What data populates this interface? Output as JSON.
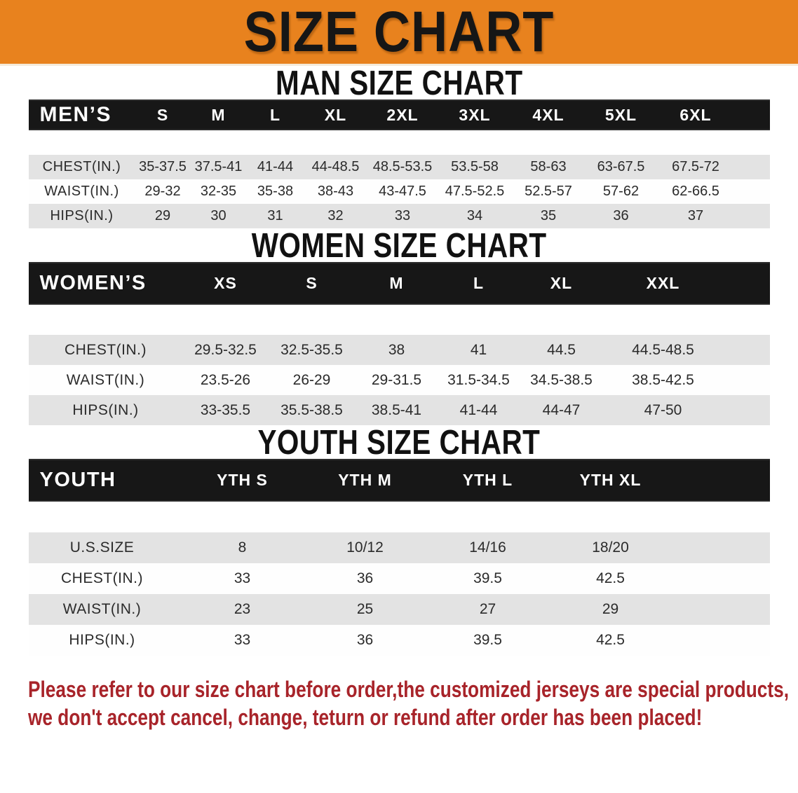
{
  "banner": {
    "title": "SIZE CHART"
  },
  "sections": [
    {
      "heading": "MAN SIZE CHART",
      "table": {
        "header_label": "MEN’S",
        "columns": [
          "S",
          "M",
          "L",
          "XL",
          "2XL",
          "3XL",
          "4XL",
          "5XL",
          "6XL"
        ],
        "rows": [
          {
            "label": "CHEST(IN.)",
            "values": [
              "35-37.5",
              "37.5-41",
              "41-44",
              "44-48.5",
              "48.5-53.5",
              "53.5-58",
              "58-63",
              "63-67.5",
              "67.5-72"
            ]
          },
          {
            "label": "WAIST(IN.)",
            "values": [
              "29-32",
              "32-35",
              "35-38",
              "38-43",
              "43-47.5",
              "47.5-52.5",
              "52.5-57",
              "57-62",
              "62-66.5"
            ]
          },
          {
            "label": "HIPS(IN.)",
            "values": [
              "29",
              "30",
              "31",
              "32",
              "33",
              "34",
              "35",
              "36",
              "37"
            ]
          }
        ]
      }
    },
    {
      "heading": "WOMEN SIZE CHART",
      "table": {
        "header_label": "WOMEN’S",
        "columns": [
          "XS",
          "S",
          "M",
          "L",
          "XL",
          "XXL"
        ],
        "rows": [
          {
            "label": "CHEST(IN.)",
            "values": [
              "29.5-32.5",
              "32.5-35.5",
              "38",
              "41",
              "44.5",
              "44.5-48.5"
            ]
          },
          {
            "label": "WAIST(IN.)",
            "values": [
              "23.5-26",
              "26-29",
              "29-31.5",
              "31.5-34.5",
              "34.5-38.5",
              "38.5-42.5"
            ]
          },
          {
            "label": "HIPS(IN.)",
            "values": [
              "33-35.5",
              "35.5-38.5",
              "38.5-41",
              "41-44",
              "44-47",
              "47-50"
            ]
          }
        ]
      }
    },
    {
      "heading": "YOUTH SIZE CHART",
      "table": {
        "header_label": "YOUTH",
        "columns": [
          "YTH S",
          "YTH M",
          "YTH L",
          "YTH XL"
        ],
        "rows": [
          {
            "label": "U.S.SIZE",
            "values": [
              "8",
              "10/12",
              "14/16",
              "18/20"
            ]
          },
          {
            "label": "CHEST(IN.)",
            "values": [
              "33",
              "36",
              "39.5",
              "42.5"
            ]
          },
          {
            "label": "WAIST(IN.)",
            "values": [
              "23",
              "25",
              "27",
              "29"
            ]
          },
          {
            "label": "HIPS(IN.)",
            "values": [
              "33",
              "36",
              "39.5",
              "42.5"
            ]
          }
        ]
      }
    }
  ],
  "disclaimer": {
    "line1": "Please refer to our size chart before order,the customized jerseys are special products,",
    "line2": "we don't accept cancel, change, teturn or refund after order has been placed!"
  },
  "colors": {
    "banner_bg": "#E8821E",
    "band_bg": "#171717",
    "stripe_gray": "#E3E3E3",
    "stripe_white": "#FEFEFE",
    "disclaimer_red": "#A8242A",
    "text_dark": "#2B2B2B"
  }
}
